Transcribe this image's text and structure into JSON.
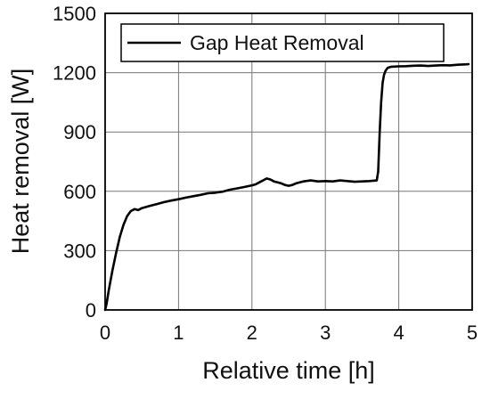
{
  "chart_data": {
    "type": "line",
    "title": "",
    "xlabel": "Relative time [h]",
    "ylabel": "Heat removal [W]",
    "xlim": [
      0,
      5
    ],
    "ylim": [
      0,
      1500
    ],
    "xticks": [
      "0",
      "1",
      "2",
      "3",
      "4",
      "5"
    ],
    "yticks": [
      "0",
      "300",
      "600",
      "900",
      "1200",
      "1500"
    ],
    "grid": true,
    "legend": {
      "position": "top",
      "entries": [
        "Gap Heat Removal"
      ]
    },
    "series": [
      {
        "name": "Gap Heat Removal",
        "color": "#000000",
        "x": [
          0.0,
          0.02,
          0.05,
          0.1,
          0.15,
          0.2,
          0.25,
          0.3,
          0.35,
          0.4,
          0.45,
          0.5,
          0.6,
          0.7,
          0.8,
          0.9,
          1.0,
          1.1,
          1.2,
          1.3,
          1.4,
          1.5,
          1.6,
          1.7,
          1.8,
          1.9,
          2.0,
          2.05,
          2.1,
          2.15,
          2.2,
          2.25,
          2.3,
          2.35,
          2.4,
          2.45,
          2.5,
          2.55,
          2.6,
          2.65,
          2.7,
          2.8,
          2.9,
          3.0,
          3.1,
          3.2,
          3.3,
          3.4,
          3.5,
          3.6,
          3.7,
          3.72,
          3.74,
          3.76,
          3.78,
          3.8,
          3.82,
          3.85,
          3.9,
          4.0,
          4.1,
          4.2,
          4.3,
          4.4,
          4.5,
          4.6,
          4.7,
          4.8,
          4.9,
          4.95
        ],
        "y": [
          0,
          30,
          100,
          200,
          290,
          370,
          430,
          475,
          500,
          510,
          505,
          515,
          525,
          535,
          545,
          553,
          560,
          568,
          575,
          582,
          590,
          593,
          598,
          608,
          615,
          622,
          630,
          635,
          645,
          655,
          665,
          660,
          650,
          645,
          640,
          632,
          628,
          632,
          640,
          645,
          650,
          655,
          650,
          652,
          650,
          655,
          652,
          648,
          650,
          652,
          655,
          700,
          900,
          1050,
          1150,
          1190,
          1210,
          1225,
          1230,
          1232,
          1233,
          1235,
          1236,
          1234,
          1236,
          1238,
          1237,
          1240,
          1242,
          1243
        ]
      }
    ]
  }
}
